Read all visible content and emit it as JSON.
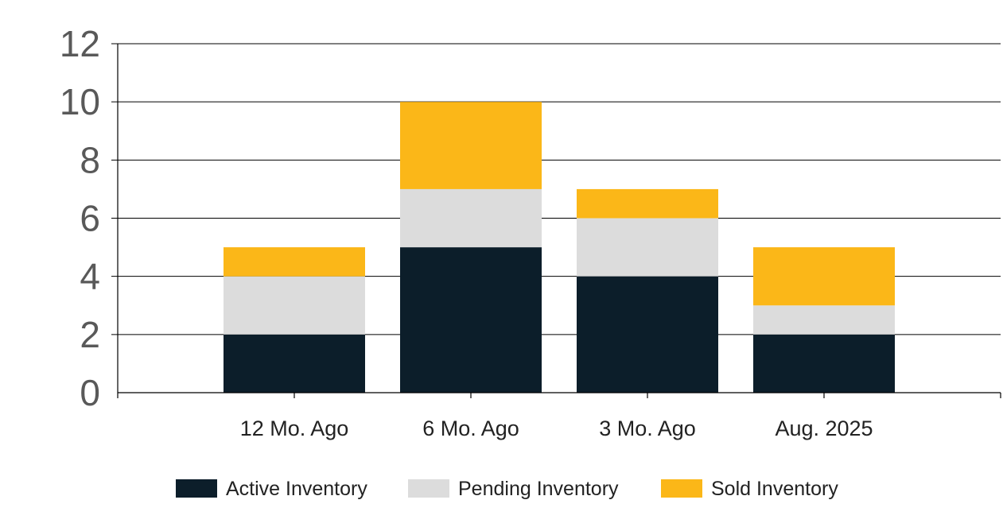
{
  "chart_data": {
    "type": "bar",
    "stacked": true,
    "categories": [
      "12 Mo. Ago",
      "6 Mo. Ago",
      "3 Mo. Ago",
      "Aug. 2025"
    ],
    "series": [
      {
        "name": "Active Inventory",
        "color": "#0c1e2a",
        "values": [
          2,
          5,
          4,
          2
        ]
      },
      {
        "name": "Pending Inventory",
        "color": "#dcdcdc",
        "values": [
          2,
          2,
          2,
          1
        ]
      },
      {
        "name": "Sold Inventory",
        "color": "#fbb718",
        "values": [
          1,
          3,
          1,
          2
        ]
      }
    ],
    "ylim": [
      0,
      12
    ],
    "yticks": [
      "0",
      "2",
      "4",
      "6",
      "8",
      "10",
      "12"
    ],
    "grid": true,
    "legend_position": "bottom"
  }
}
